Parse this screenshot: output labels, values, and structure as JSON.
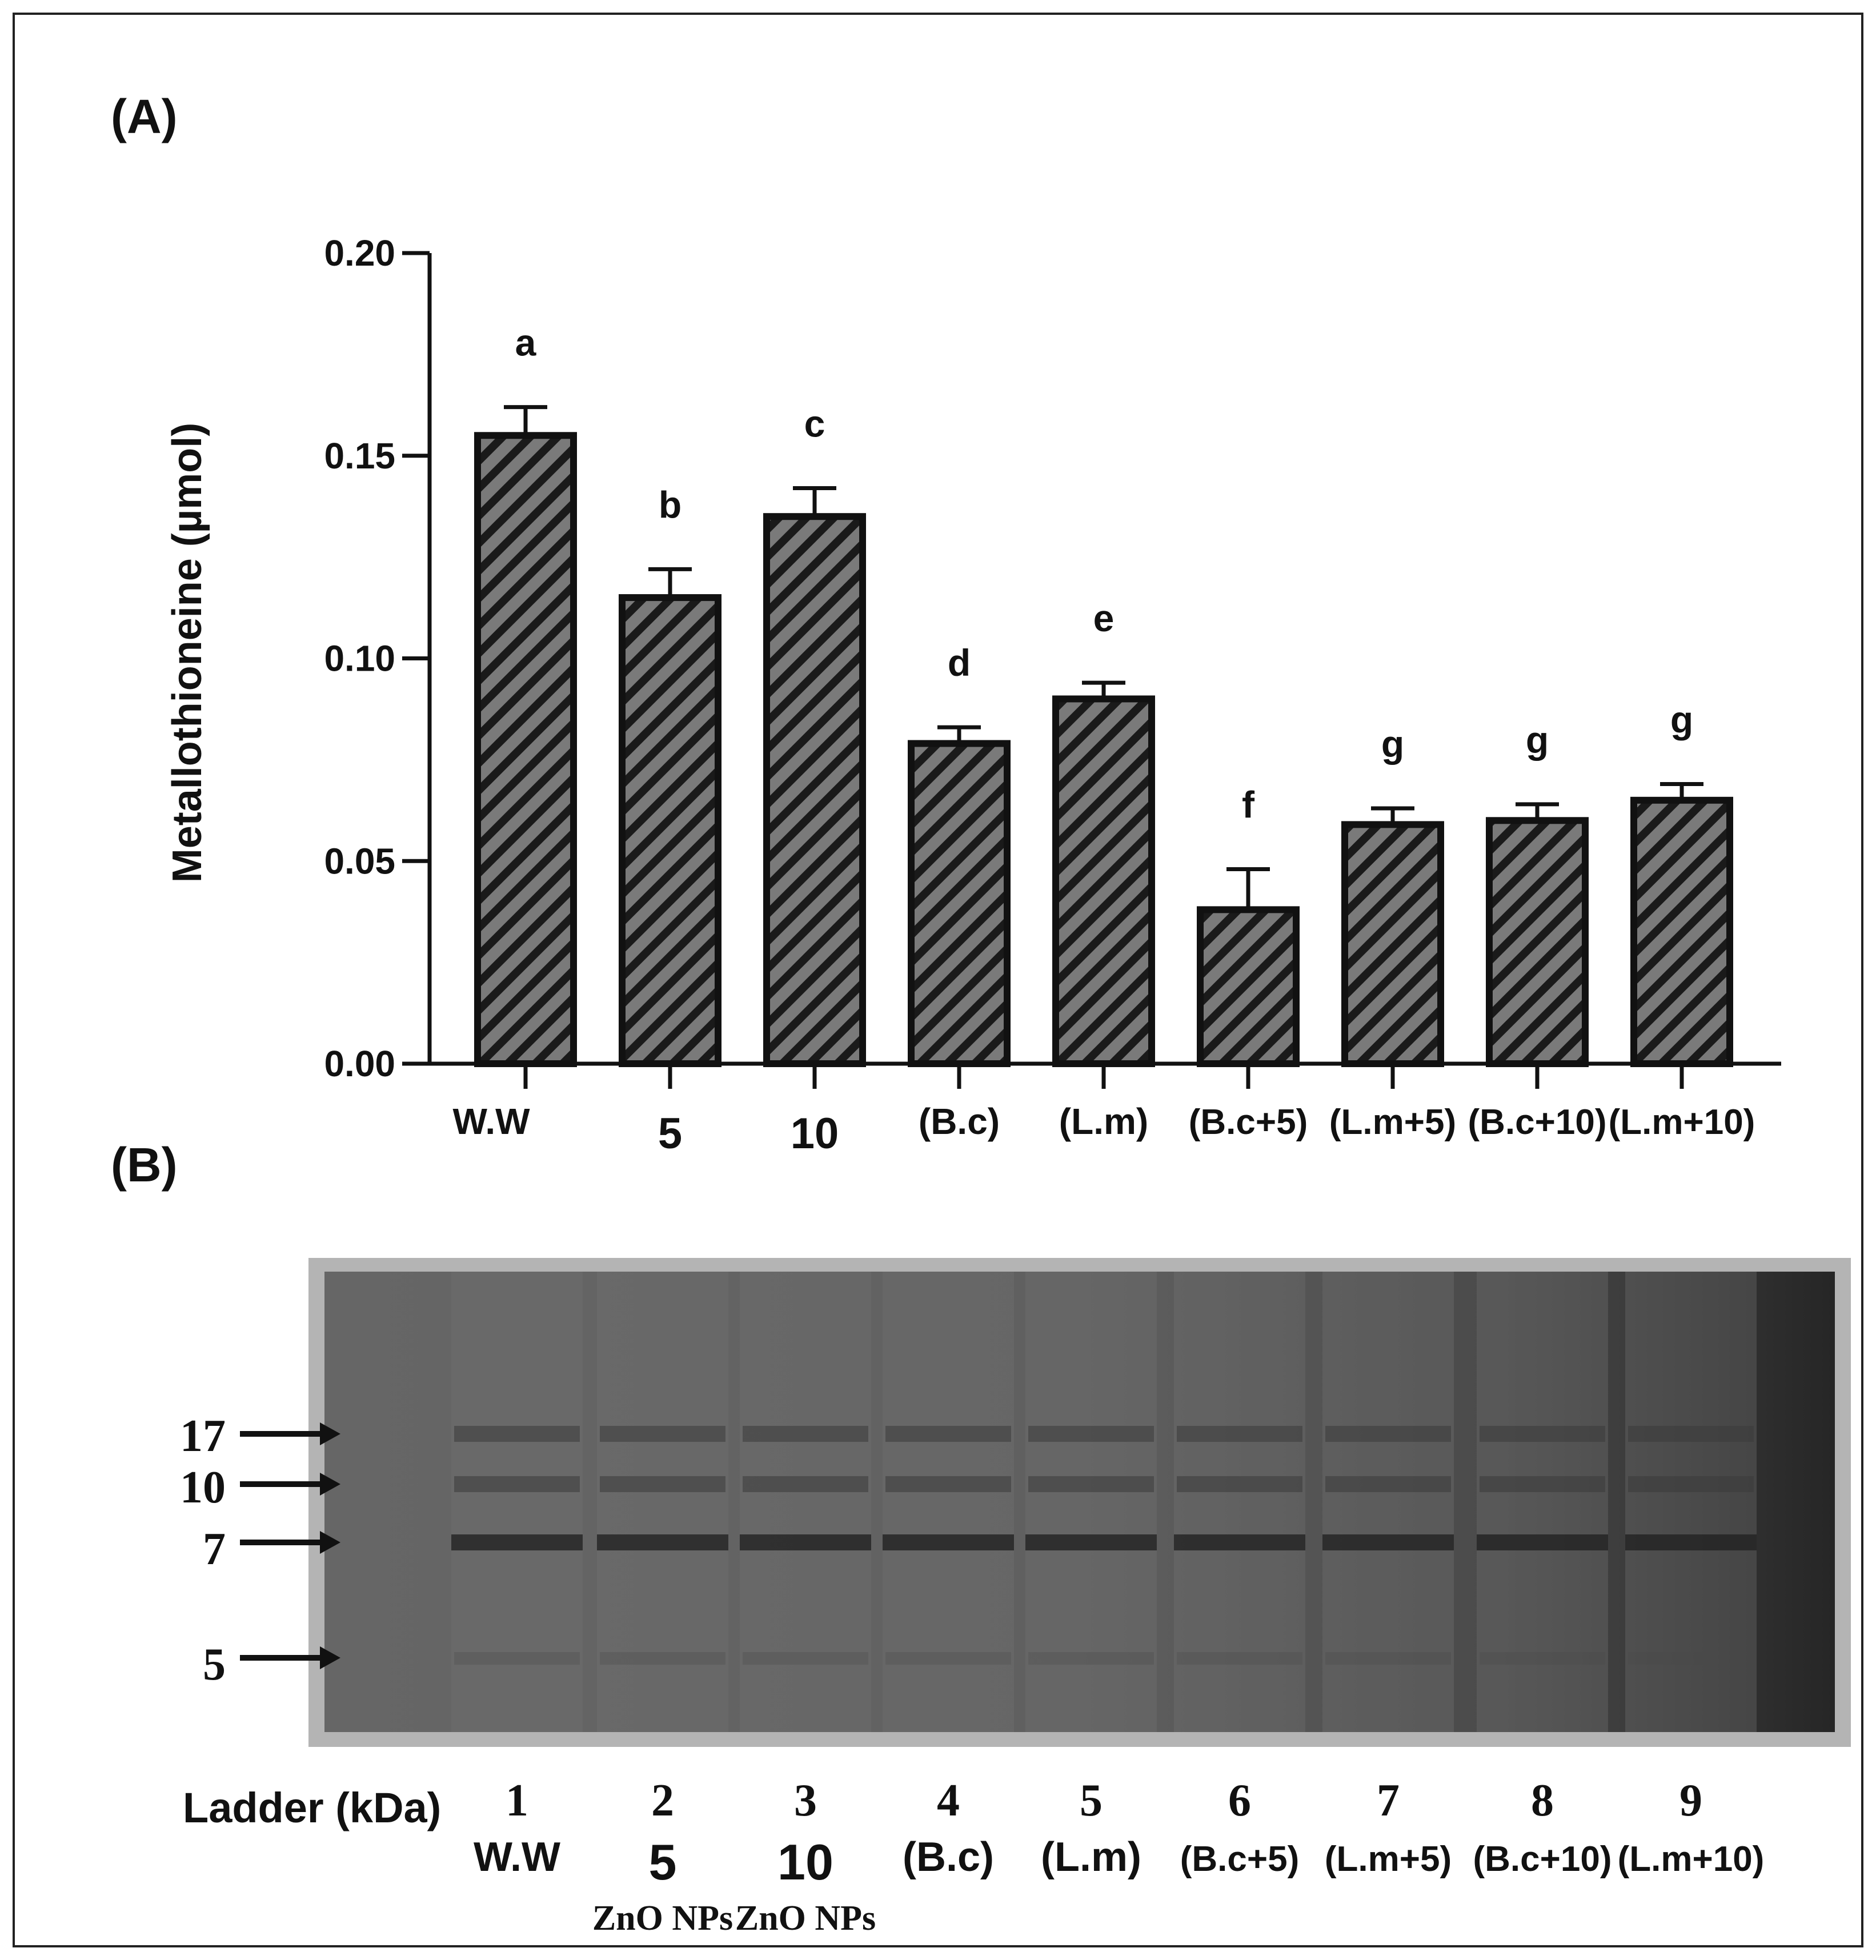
{
  "panels": {
    "a_label": "(A)",
    "b_label": "(B)"
  },
  "colors": {
    "bar_fill": "#7a7a7a",
    "bar_hatch": "#1a1a1a",
    "axis": "#111111",
    "gel_bg": "#5c5c5c",
    "gel_border": "#b4b4b4"
  },
  "chart_data": {
    "type": "bar",
    "ylabel": "Metallothioneine (µmol)",
    "xlabel": "",
    "ylim": [
      0,
      0.2
    ],
    "yticks": [
      "0.00",
      "0.05",
      "0.10",
      "0.15",
      "0.20"
    ],
    "categories": [
      "W.W",
      "5",
      "10",
      "(B.c)",
      "(L.m)",
      "(B.c+5)",
      "(L.m+5)",
      "(B.c+10)",
      "(L.m+10)"
    ],
    "values": [
      0.155,
      0.115,
      0.135,
      0.079,
      0.09,
      0.038,
      0.059,
      0.06,
      0.065
    ],
    "errors": [
      0.007,
      0.007,
      0.007,
      0.004,
      0.004,
      0.01,
      0.004,
      0.004,
      0.004
    ],
    "significance_letters": [
      "a",
      "b",
      "c",
      "d",
      "e",
      "f",
      "g",
      "g",
      "g"
    ],
    "grid": false,
    "legend": "none"
  },
  "gel": {
    "ladder_label": "Ladder (kDa)",
    "markers": [
      "17",
      "10",
      "7",
      "5"
    ],
    "lanes": [
      {
        "number": "1",
        "label": "W.W",
        "sub": ""
      },
      {
        "number": "2",
        "label": "5",
        "sub": "ZnO NPs"
      },
      {
        "number": "3",
        "label": "10",
        "sub": "ZnO NPs"
      },
      {
        "number": "4",
        "label": "(B.c)",
        "sub": ""
      },
      {
        "number": "5",
        "label": "(L.m)",
        "sub": ""
      },
      {
        "number": "6",
        "label": "(B.c+5)",
        "sub": ""
      },
      {
        "number": "7",
        "label": "(L.m+5)",
        "sub": ""
      },
      {
        "number": "8",
        "label": "(B.c+10)",
        "sub": ""
      },
      {
        "number": "9",
        "label": "(L.m+10)",
        "sub": ""
      }
    ]
  }
}
